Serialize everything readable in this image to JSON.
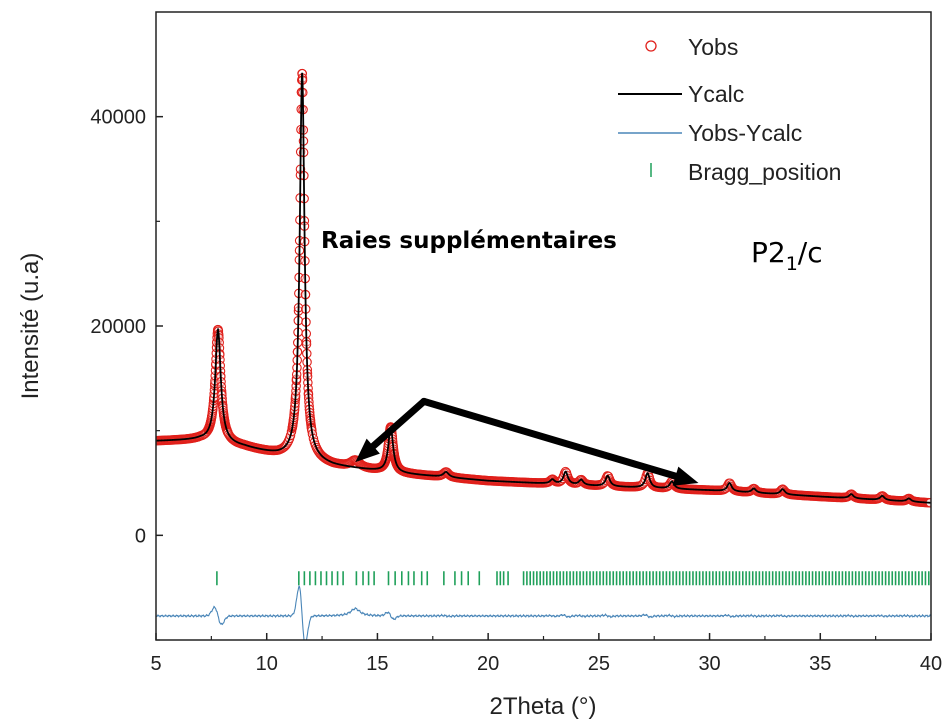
{
  "chart_data": {
    "type": "scatter",
    "xlabel": "2Theta (°)",
    "ylabel": "Intensité (u.a)",
    "xlim": [
      5,
      40
    ],
    "ylim": [
      -10000,
      50000
    ],
    "x_ticks": [
      "5",
      "10",
      "15",
      "20",
      "25",
      "30",
      "35",
      "40"
    ],
    "y_ticks": [
      "0",
      "20000",
      "40000"
    ],
    "grid": false,
    "legend_position": "top-right",
    "legend": [
      "Yobs",
      "Ycalc",
      "Yobs-Ycalc",
      "Bragg_position"
    ],
    "colors": {
      "yobs": "#e0201b",
      "ycalc": "#000000",
      "difference": "#4a86b8",
      "bragg": "#1fa05a"
    },
    "profile": {
      "background": [
        [
          5,
          9000
        ],
        [
          7,
          9100
        ],
        [
          9,
          8400
        ],
        [
          10.5,
          7600
        ],
        [
          13,
          6600
        ],
        [
          16,
          5900
        ],
        [
          20,
          5200
        ],
        [
          25,
          4700
        ],
        [
          30,
          4300
        ],
        [
          35,
          3700
        ],
        [
          40,
          3100
        ]
      ],
      "peaks": [
        {
          "x": 7.8,
          "height": 10800,
          "width": 0.15
        },
        {
          "x": 11.6,
          "height": 37000,
          "width": 0.13
        },
        {
          "x": 15.6,
          "height": 4300,
          "width": 0.13
        },
        {
          "x": 18.1,
          "height": 500,
          "width": 0.15
        },
        {
          "x": 22.9,
          "height": 400,
          "width": 0.12
        },
        {
          "x": 23.5,
          "height": 1200,
          "width": 0.12
        },
        {
          "x": 24.2,
          "height": 500,
          "width": 0.12
        },
        {
          "x": 25.4,
          "height": 1000,
          "width": 0.12
        },
        {
          "x": 27.2,
          "height": 1400,
          "width": 0.12
        },
        {
          "x": 28.3,
          "height": 700,
          "width": 0.12
        },
        {
          "x": 30.9,
          "height": 800,
          "width": 0.12
        },
        {
          "x": 32.0,
          "height": 400,
          "width": 0.12
        },
        {
          "x": 33.3,
          "height": 500,
          "width": 0.12
        },
        {
          "x": 36.4,
          "height": 400,
          "width": 0.12
        },
        {
          "x": 37.8,
          "height": 400,
          "width": 0.12
        },
        {
          "x": 39.0,
          "height": 300,
          "width": 0.12
        }
      ],
      "extra_observed_peaks": [
        {
          "x": 14.0,
          "height": 700,
          "width": 0.25
        }
      ]
    },
    "difference_offset": -7700,
    "bragg_level": -4100,
    "bragg_positions": [
      7.75,
      11.45,
      11.7,
      11.95,
      12.2,
      12.45,
      12.7,
      12.95,
      13.2,
      13.45,
      14.05,
      14.35,
      14.6,
      14.85,
      15.5,
      15.8,
      16.1,
      16.4,
      16.65,
      17.0,
      17.25,
      18.0,
      18.5,
      18.8,
      19.1,
      19.6,
      20.4,
      20.55,
      20.7,
      20.9,
      21.6,
      21.75,
      21.9,
      22.05,
      22.2,
      22.35,
      22.5,
      22.65,
      22.8,
      22.95,
      23.1,
      23.25,
      23.4,
      23.55,
      23.7,
      23.85,
      24.0,
      24.15,
      24.3,
      24.45,
      24.6,
      24.75,
      24.9,
      25.05,
      25.2,
      25.35,
      25.5,
      25.65,
      25.8,
      25.95,
      26.1,
      26.25,
      26.4,
      26.55,
      26.7,
      26.85,
      27.0,
      27.15,
      27.3,
      27.45,
      27.6,
      27.75,
      27.9,
      28.05,
      28.2,
      28.35,
      28.5,
      28.65,
      28.8,
      28.95,
      29.1,
      29.25,
      29.4,
      29.55,
      29.7,
      29.85,
      30.0,
      30.15,
      30.3,
      30.45,
      30.6,
      30.75,
      30.9,
      31.05,
      31.2,
      31.35,
      31.5,
      31.65,
      31.8,
      31.95,
      32.1,
      32.25,
      32.4,
      32.55,
      32.7,
      32.85,
      33.0,
      33.15,
      33.3,
      33.45,
      33.6,
      33.75,
      33.9,
      34.05,
      34.2,
      34.35,
      34.5,
      34.65,
      34.8,
      34.95,
      35.1,
      35.25,
      35.4,
      35.55,
      35.7,
      35.85,
      36.0,
      36.15,
      36.3,
      36.45,
      36.6,
      36.75,
      36.9,
      37.05,
      37.2,
      37.35,
      37.5,
      37.65,
      37.8,
      37.95,
      38.1,
      38.25,
      38.4,
      38.55,
      38.7,
      38.85,
      39.0,
      39.15,
      39.3,
      39.45,
      39.6,
      39.75,
      39.9
    ],
    "annotations": [
      {
        "text": "Raies supplémentaires",
        "arrow_targets": [
          [
            14.0,
            7000
          ],
          [
            29.5,
            5000
          ]
        ],
        "arrow_origin": [
          17.1,
          12800
        ]
      }
    ],
    "space_group": {
      "main": "P2",
      "sub": "1",
      "tail": "/c"
    }
  }
}
